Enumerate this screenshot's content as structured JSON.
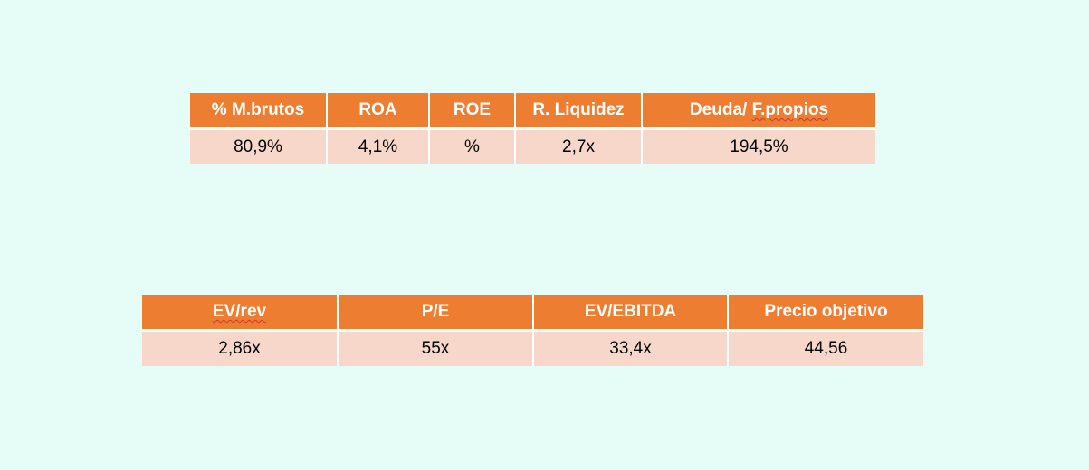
{
  "table1": {
    "headers": [
      "% M.brutos",
      "ROA",
      "ROE",
      "R. Liquidez",
      "Deuda/ F.propios"
    ],
    "values": [
      "80,9%",
      "4,1%",
      "%",
      "2,7x",
      "194,5%"
    ]
  },
  "table2": {
    "headers": [
      "EV/rev",
      "P/E",
      "EV/EBITDA",
      "Precio objetivo"
    ],
    "values": [
      "2,86x",
      "55x",
      "33,4x",
      "44,56"
    ]
  },
  "colors": {
    "background": "#e6fdf7",
    "header": "#ed7d31",
    "row": "#f8d7cb",
    "header_text": "#ffffff"
  }
}
